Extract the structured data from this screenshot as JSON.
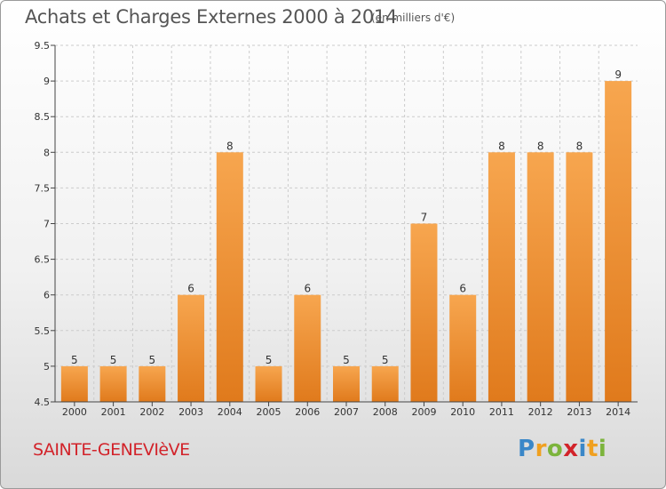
{
  "header": {
    "title": "Achats et Charges Externes 2000 à 2014",
    "subtitle": "(en milliers d'€)"
  },
  "footer": {
    "commune": "SAINTE-GENEVIèVE",
    "brand_letters": [
      "P",
      "r",
      "o",
      "x",
      "i",
      "t",
      "i"
    ],
    "brand_colors": [
      "#3a87c8",
      "#f0a020",
      "#7cb43c",
      "#d2232a",
      "#3a87c8",
      "#f0a020",
      "#7cb43c"
    ]
  },
  "colors": {
    "bar_light": "#f7a64f",
    "bar_dark": "#e07a1c",
    "axis": "#444444",
    "grid": "#cccccc",
    "text": "#333333"
  },
  "chart_data": {
    "type": "bar",
    "title": "Achats et Charges Externes 2000 à 2014",
    "subtitle": "(en milliers d'€)",
    "xlabel": "",
    "ylabel": "",
    "categories": [
      "2000",
      "2001",
      "2002",
      "2003",
      "2004",
      "2005",
      "2006",
      "2007",
      "2008",
      "2009",
      "2010",
      "2011",
      "2012",
      "2013",
      "2014"
    ],
    "values": [
      5,
      5,
      5,
      6,
      8,
      5,
      6,
      5,
      5,
      7,
      6,
      8,
      8,
      8,
      9
    ],
    "data_labels": [
      "5",
      "5",
      "5",
      "6",
      "8",
      "5",
      "6",
      "5",
      "5",
      "7",
      "6",
      "8",
      "8",
      "8",
      "9"
    ],
    "ylim": [
      4.5,
      9.5
    ],
    "yticks": [
      "4.5",
      "5",
      "5.5",
      "6",
      "6.5",
      "7",
      "7.5",
      "8",
      "8.5",
      "9",
      "9.5"
    ],
    "grid": true
  }
}
